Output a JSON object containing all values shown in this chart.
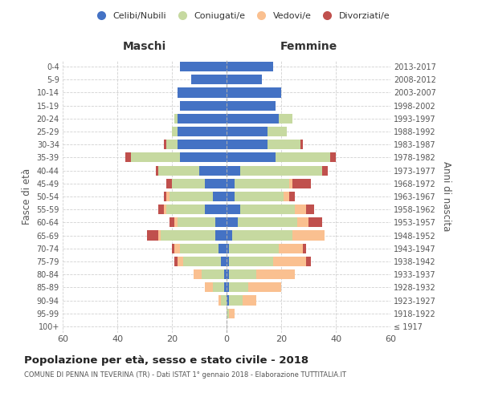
{
  "age_groups": [
    "100+",
    "95-99",
    "90-94",
    "85-89",
    "80-84",
    "75-79",
    "70-74",
    "65-69",
    "60-64",
    "55-59",
    "50-54",
    "45-49",
    "40-44",
    "35-39",
    "30-34",
    "25-29",
    "20-24",
    "15-19",
    "10-14",
    "5-9",
    "0-4"
  ],
  "birth_years": [
    "≤ 1917",
    "1918-1922",
    "1923-1927",
    "1928-1932",
    "1933-1937",
    "1938-1942",
    "1943-1947",
    "1948-1952",
    "1953-1957",
    "1958-1962",
    "1963-1967",
    "1968-1972",
    "1973-1977",
    "1978-1982",
    "1983-1987",
    "1988-1992",
    "1993-1997",
    "1998-2002",
    "2003-2007",
    "2008-2012",
    "2013-2017"
  ],
  "maschi": {
    "celibi": [
      0,
      0,
      0,
      1,
      1,
      2,
      3,
      4,
      4,
      8,
      5,
      8,
      10,
      17,
      18,
      18,
      18,
      17,
      18,
      13,
      17
    ],
    "coniugati": [
      0,
      0,
      2,
      4,
      8,
      14,
      14,
      20,
      14,
      14,
      16,
      12,
      15,
      18,
      4,
      2,
      1,
      0,
      0,
      0,
      0
    ],
    "vedovi": [
      0,
      0,
      1,
      3,
      3,
      2,
      2,
      1,
      1,
      1,
      1,
      0,
      0,
      0,
      0,
      0,
      0,
      0,
      0,
      0,
      0
    ],
    "divorziati": [
      0,
      0,
      0,
      0,
      0,
      1,
      1,
      4,
      2,
      2,
      1,
      2,
      1,
      2,
      1,
      0,
      0,
      0,
      0,
      0,
      0
    ]
  },
  "femmine": {
    "nubili": [
      0,
      0,
      1,
      1,
      1,
      1,
      1,
      2,
      4,
      5,
      3,
      3,
      5,
      18,
      15,
      15,
      19,
      18,
      20,
      13,
      17
    ],
    "coniugate": [
      0,
      1,
      5,
      7,
      10,
      16,
      18,
      22,
      22,
      20,
      18,
      20,
      30,
      20,
      12,
      7,
      5,
      0,
      0,
      0,
      0
    ],
    "vedove": [
      0,
      2,
      5,
      12,
      14,
      12,
      9,
      12,
      4,
      4,
      2,
      1,
      0,
      0,
      0,
      0,
      0,
      0,
      0,
      0,
      0
    ],
    "divorziate": [
      0,
      0,
      0,
      0,
      0,
      2,
      1,
      0,
      5,
      3,
      2,
      7,
      2,
      2,
      1,
      0,
      0,
      0,
      0,
      0,
      0
    ]
  },
  "colors": {
    "celibi": "#4472C4",
    "coniugati": "#C6D9A0",
    "vedovi": "#FAC090",
    "divorziati": "#C0504D"
  },
  "xlim": 60,
  "title": "Popolazione per età, sesso e stato civile - 2018",
  "subtitle": "COMUNE DI PENNA IN TEVERINA (TR) - Dati ISTAT 1° gennaio 2018 - Elaborazione TUTTITALIA.IT",
  "ylabel_left": "Fasce di età",
  "ylabel_right": "Anni di nascita",
  "xlabel_maschi": "Maschi",
  "xlabel_femmine": "Femmine",
  "legend_labels": [
    "Celibi/Nubili",
    "Coniugati/e",
    "Vedovi/e",
    "Divorziati/e"
  ],
  "bg_color": "#ffffff",
  "grid_color": "#cccccc"
}
